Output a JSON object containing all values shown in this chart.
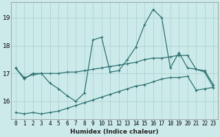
{
  "xlabel": "Humidex (Indice chaleur)",
  "ylabel": "",
  "bg_color": "#cdeaea",
  "grid_color": "#a8cccc",
  "line_color": "#2a7070",
  "xlim": [
    -0.5,
    23.5
  ],
  "ylim": [
    15.35,
    19.55
  ],
  "yticks": [
    16,
    17,
    18,
    19
  ],
  "xtick_labels": [
    "0",
    "1",
    "2",
    "3",
    "4",
    "5",
    "6",
    "7",
    "8",
    "9",
    "10",
    "11",
    "12",
    "13",
    "14",
    "15",
    "16",
    "17",
    "18",
    "19",
    "20",
    "21",
    "22",
    "23"
  ],
  "series_volatile_x": [
    0,
    1,
    2,
    3,
    4,
    5,
    6,
    7,
    8,
    9,
    10,
    11,
    12,
    13,
    14,
    15,
    16,
    17,
    18,
    19,
    20,
    21,
    22,
    23
  ],
  "series_volatile_y": [
    17.2,
    16.8,
    17.0,
    17.0,
    16.65,
    16.45,
    16.2,
    16.0,
    16.3,
    18.2,
    18.3,
    17.05,
    17.1,
    17.5,
    17.95,
    18.75,
    19.3,
    19.0,
    17.2,
    17.75,
    17.2,
    17.15,
    17.05,
    16.5
  ],
  "series_flat_x": [
    0,
    1,
    2,
    3,
    4,
    5,
    6,
    7,
    8,
    9,
    10,
    11,
    12,
    13,
    14,
    15,
    16,
    17,
    18,
    19,
    20,
    21,
    22,
    23
  ],
  "series_flat_y": [
    17.2,
    16.85,
    16.95,
    17.0,
    17.0,
    17.0,
    17.05,
    17.05,
    17.1,
    17.15,
    17.2,
    17.25,
    17.3,
    17.35,
    17.4,
    17.5,
    17.55,
    17.55,
    17.6,
    17.65,
    17.65,
    17.15,
    17.1,
    16.6
  ],
  "series_rise_x": [
    0,
    1,
    2,
    3,
    4,
    5,
    6,
    7,
    8,
    9,
    10,
    11,
    12,
    13,
    14,
    15,
    16,
    17,
    18,
    19,
    20,
    21,
    22,
    23
  ],
  "series_rise_y": [
    15.6,
    15.55,
    15.6,
    15.55,
    15.6,
    15.65,
    15.75,
    15.85,
    15.95,
    16.05,
    16.15,
    16.25,
    16.35,
    16.45,
    16.55,
    16.6,
    16.7,
    16.8,
    16.85,
    16.85,
    16.9,
    16.4,
    16.45,
    16.5
  ]
}
